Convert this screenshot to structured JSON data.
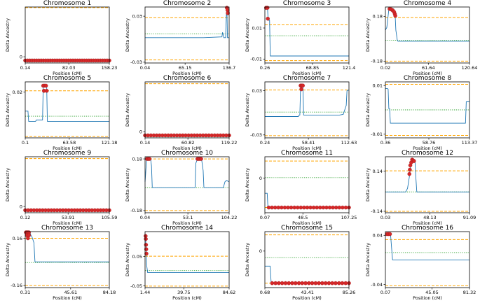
{
  "figure": {
    "xlabel": "Position (cM)",
    "ylabel": "Delta Ancestry",
    "colors": {
      "line": "#1f77b4",
      "bound": "#ffa500",
      "mean": "#2ca02c",
      "marker": "#d62728",
      "marker_edge": "#8b1a1a"
    }
  },
  "chart_data": [
    {
      "type": "line",
      "title": "Chromosome 1",
      "xticks": [
        "0.14",
        "82.03",
        "158.23"
      ],
      "yticks": [
        "0"
      ],
      "xlim": [
        0.14,
        158.23
      ],
      "ylim": [
        -0.01,
        0.08
      ],
      "upper": 0.079,
      "lower": -0.006,
      "mean": null,
      "series": [],
      "markers": {
        "x0": 0.14,
        "x1": 158.23,
        "y": -0.006,
        "n": 38
      }
    },
    {
      "type": "line",
      "title": "Chromosome 2",
      "xticks": [
        "0.04",
        "65.15",
        "136.7"
      ],
      "yticks": [
        "0.03",
        "-0.03"
      ],
      "xlim": [
        0.04,
        136.7
      ],
      "ylim": [
        -0.031,
        0.042
      ],
      "upper": 0.028,
      "lower": -0.027,
      "mean": 0.007,
      "series": [
        [
          0.04,
          0.002
        ],
        [
          95,
          0.002
        ],
        [
          125,
          0.003
        ],
        [
          126,
          0.009
        ],
        [
          128,
          0.002
        ],
        [
          131,
          0.002
        ],
        [
          132,
          0.03
        ],
        [
          133,
          0.041
        ],
        [
          134,
          0.002
        ],
        [
          136.7,
          0.002
        ]
      ],
      "markers": [
        [
          133,
          0.041
        ],
        [
          134,
          0.038
        ],
        [
          134.5,
          0.034
        ]
      ]
    },
    {
      "type": "line",
      "title": "Chromosome 3",
      "xticks": [
        "0.26",
        "68.85",
        "121.4"
      ],
      "yticks": [
        "0.01",
        "-0.01"
      ],
      "xlim": [
        0.26,
        121.4
      ],
      "ylim": [
        -0.0125,
        0.0235
      ],
      "upper": 0.012,
      "lower": -0.011,
      "mean": 0.005,
      "series": [
        [
          0.26,
          0.023
        ],
        [
          4,
          0.023
        ],
        [
          5,
          0.015
        ],
        [
          7,
          0.015
        ],
        [
          8,
          -0.008
        ],
        [
          121.4,
          -0.008
        ]
      ],
      "markers": [
        [
          2,
          0.023
        ],
        [
          4,
          0.023
        ],
        [
          4.5,
          0.016
        ]
      ]
    },
    {
      "type": "line",
      "title": "Chromosome 4",
      "xticks": [
        "0.02",
        "61.64",
        "120.64"
      ],
      "yticks": [
        "0.18",
        "-0.18"
      ],
      "xlim": [
        0.02,
        120.64
      ],
      "ylim": [
        -0.195,
        0.255
      ],
      "upper": 0.17,
      "lower": -0.18,
      "mean": -0.012,
      "series": [
        [
          0.02,
          0.07
        ],
        [
          2,
          0.09
        ],
        [
          5,
          0.24
        ],
        [
          12,
          0.24
        ],
        [
          14,
          0.19
        ],
        [
          15,
          0.07
        ],
        [
          17,
          -0.01
        ],
        [
          18,
          -0.02
        ],
        [
          120.64,
          -0.02
        ]
      ],
      "markers": [
        [
          6,
          0.24
        ],
        [
          8,
          0.237
        ],
        [
          9.5,
          0.232
        ],
        [
          11,
          0.225
        ],
        [
          12.5,
          0.215
        ],
        [
          13.5,
          0.2
        ],
        [
          14.2,
          0.185
        ]
      ]
    },
    {
      "type": "line",
      "title": "Chromosome 5",
      "xticks": [
        "0.1",
        "63.58",
        "121.18"
      ],
      "yticks": [
        "0.02"
      ],
      "xlim": [
        0.1,
        121.18
      ],
      "ylim": [
        -0.016,
        0.028
      ],
      "upper": 0.021,
      "lower": -0.015,
      "mean": 0.001,
      "series": [
        [
          0.1,
          0.005
        ],
        [
          4,
          0.005
        ],
        [
          5,
          -0.003
        ],
        [
          15,
          -0.003
        ],
        [
          16,
          -0.002
        ],
        [
          25,
          -0.002
        ],
        [
          26,
          0.025
        ],
        [
          31,
          0.025
        ],
        [
          32,
          -0.003
        ],
        [
          121.18,
          -0.003
        ]
      ],
      "markers": [
        [
          26,
          0.025
        ],
        [
          28,
          0.025
        ],
        [
          30,
          0.025
        ],
        [
          27,
          0.021
        ],
        [
          31,
          0.021
        ]
      ]
    },
    {
      "type": "line",
      "title": "Chromosome 6",
      "xticks": [
        "0.14",
        "60.82",
        "119.22"
      ],
      "yticks": [
        "0"
      ],
      "xlim": [
        0.14,
        119.22
      ],
      "ylim": [
        -0.01,
        0.08
      ],
      "upper": 0.077,
      "lower": -0.006,
      "mean": null,
      "series": [],
      "markers": {
        "x0": 0.14,
        "x1": 119.22,
        "y": -0.006,
        "n": 30
      }
    },
    {
      "type": "line",
      "title": "Chromosome 7",
      "xticks": [
        "0.24",
        "58.41",
        "112.63"
      ],
      "yticks": [
        "0.03",
        "-0.03"
      ],
      "xlim": [
        0.24,
        112.63
      ],
      "ylim": [
        -0.034,
        0.042
      ],
      "upper": 0.031,
      "lower": -0.031,
      "mean": 0.001,
      "series": [
        [
          0.24,
          -0.005
        ],
        [
          45,
          -0.005
        ],
        [
          46,
          -0.003
        ],
        [
          47,
          -0.003
        ],
        [
          48,
          0.037
        ],
        [
          51,
          0.037
        ],
        [
          52,
          -0.003
        ],
        [
          100,
          -0.003
        ],
        [
          105,
          -0.002
        ],
        [
          109,
          0.01
        ],
        [
          110,
          0.03
        ],
        [
          112.63,
          0.031
        ]
      ],
      "markers": [
        [
          48,
          0.037
        ],
        [
          49.5,
          0.037
        ],
        [
          51,
          0.037
        ],
        [
          49,
          0.032
        ]
      ]
    },
    {
      "type": "line",
      "title": "Chromosome 8",
      "xticks": [
        "0.36",
        "58.76",
        "113.37"
      ],
      "yticks": [
        "0.01",
        "-0.01"
      ],
      "xlim": [
        0.36,
        113.37
      ],
      "ylim": [
        -0.0115,
        0.0115
      ],
      "upper": 0.0105,
      "lower": -0.0105,
      "mean": 0.0,
      "series": [
        [
          0.36,
          0.0088
        ],
        [
          3,
          0.0088
        ],
        [
          4,
          0.0085
        ],
        [
          5,
          0.0005
        ],
        [
          6,
          0.0005
        ],
        [
          7,
          -0.0055
        ],
        [
          108,
          -0.0055
        ],
        [
          109,
          0.0033
        ],
        [
          113.37,
          0.0033
        ]
      ],
      "markers": []
    },
    {
      "type": "line",
      "title": "Chromosome 9",
      "xticks": [
        "0.12",
        "53.91",
        "105.59"
      ],
      "yticks": [
        "0"
      ],
      "xlim": [
        0.12,
        105.59
      ],
      "ylim": [
        -0.01,
        0.08
      ],
      "upper": 0.077,
      "lower": -0.006,
      "mean": null,
      "series": [],
      "markers": {
        "x0": 0.12,
        "x1": 105.59,
        "y": -0.006,
        "n": 30
      }
    },
    {
      "type": "line",
      "title": "Chromosome 10",
      "xticks": [
        "0.04",
        "53.1",
        "104.22"
      ],
      "yticks": [
        "0.18",
        "-0.18"
      ],
      "xlim": [
        0.04,
        104.22
      ],
      "ylim": [
        -0.195,
        0.195
      ],
      "upper": 0.18,
      "lower": -0.18,
      "mean": -0.02,
      "series": [
        [
          0.04,
          0.02
        ],
        [
          2,
          0.18
        ],
        [
          7,
          0.18
        ],
        [
          8,
          0.13
        ],
        [
          9,
          -0.02
        ],
        [
          62,
          -0.02
        ],
        [
          63,
          0.15
        ],
        [
          65,
          0.18
        ],
        [
          70,
          0.18
        ],
        [
          72,
          0.1
        ],
        [
          73,
          -0.02
        ],
        [
          97,
          -0.02
        ],
        [
          99,
          0.02
        ],
        [
          101,
          0.03
        ],
        [
          104.22,
          0.02
        ]
      ],
      "markers": [
        [
          2.5,
          0.18
        ],
        [
          4,
          0.18
        ],
        [
          5.5,
          0.18
        ],
        [
          65,
          0.18
        ],
        [
          66.5,
          0.18
        ],
        [
          68,
          0.18
        ],
        [
          69.5,
          0.18
        ]
      ]
    },
    {
      "type": "line",
      "title": "Chromosome 11",
      "xticks": [
        "0.07",
        "48.5",
        "107.25"
      ],
      "yticks": [
        "0"
      ],
      "xlim": [
        0.07,
        107.25
      ],
      "ylim": [
        -0.073,
        0.045
      ],
      "upper": 0.036,
      "lower": -0.062,
      "mean": 0.001,
      "series": [
        [
          0.07,
          -0.032
        ],
        [
          3,
          -0.032
        ],
        [
          4,
          -0.062
        ],
        [
          107.25,
          -0.062
        ]
      ],
      "markers": {
        "x0": 5,
        "x1": 107.25,
        "y": -0.062,
        "n": 26
      }
    },
    {
      "type": "line",
      "title": "Chromosome 12",
      "xticks": [
        "0.03",
        "48.13",
        "91.09"
      ],
      "yticks": [
        "0.14",
        "-0.14"
      ],
      "xlim": [
        0.03,
        91.09
      ],
      "ylim": [
        -0.15,
        0.24
      ],
      "upper": 0.142,
      "lower": -0.14,
      "mean": -0.005,
      "series": [
        [
          0.03,
          -0.005
        ],
        [
          22,
          -0.005
        ],
        [
          24,
          0.02
        ],
        [
          26,
          0.1
        ],
        [
          28,
          0.22
        ],
        [
          32,
          0.22
        ],
        [
          33,
          0.1
        ],
        [
          34,
          -0.005
        ],
        [
          91.09,
          -0.005
        ]
      ],
      "markers": [
        [
          26,
          0.12
        ],
        [
          26.5,
          0.15
        ],
        [
          27,
          0.18
        ],
        [
          28,
          0.2
        ],
        [
          29,
          0.22
        ],
        [
          30,
          0.215
        ],
        [
          31,
          0.21
        ]
      ]
    },
    {
      "type": "line",
      "title": "Chromosome 13",
      "xticks": [
        "0.31",
        "45.61",
        "84.18"
      ],
      "yticks": [
        "0.16",
        "-0.16"
      ],
      "xlim": [
        0.31,
        84.18
      ],
      "ylim": [
        -0.175,
        0.205
      ],
      "upper": 0.16,
      "lower": -0.16,
      "mean": -0.005,
      "series": [
        [
          0.31,
          0.2
        ],
        [
          5,
          0.2
        ],
        [
          6,
          0.18
        ],
        [
          7,
          0.17
        ],
        [
          9,
          0.13
        ],
        [
          10,
          0.0
        ],
        [
          84.18,
          0.0
        ]
      ],
      "markers": [
        [
          1,
          0.2
        ],
        [
          2,
          0.2
        ],
        [
          3,
          0.2
        ],
        [
          4,
          0.2
        ],
        [
          2,
          0.18
        ],
        [
          4,
          0.18
        ],
        [
          3,
          0.16
        ]
      ]
    },
    {
      "type": "line",
      "title": "Chromosome 14",
      "xticks": [
        "1.44",
        "39.75",
        "84.62"
      ],
      "yticks": [
        "0.05",
        "-0.05"
      ],
      "xlim": [
        1.44,
        84.62
      ],
      "ylim": [
        -0.056,
        0.135
      ],
      "upper": 0.051,
      "lower": -0.051,
      "mean": 0.002,
      "series": [
        [
          1.44,
          0.12
        ],
        [
          2,
          0.12
        ],
        [
          3,
          0.02
        ],
        [
          4,
          -0.005
        ],
        [
          84.62,
          -0.005
        ]
      ],
      "markers": [
        [
          2,
          0.12
        ],
        [
          2.2,
          0.11
        ],
        [
          2.4,
          0.09
        ],
        [
          2.6,
          0.075
        ],
        [
          2.8,
          0.06
        ]
      ]
    },
    {
      "type": "line",
      "title": "Chromosome 15",
      "xticks": [
        "0.68",
        "43.41",
        "85.26"
      ],
      "yticks": [
        "0"
      ],
      "xlim": [
        0.68,
        85.26
      ],
      "ylim": [
        -0.09,
        0.048
      ],
      "upper": 0.04,
      "lower": -0.079,
      "mean": -0.016,
      "series": [
        [
          0.68,
          -0.037
        ],
        [
          6,
          -0.037
        ],
        [
          7,
          -0.079
        ],
        [
          85.26,
          -0.079
        ]
      ],
      "markers": {
        "x0": 8,
        "x1": 85.26,
        "y": -0.079,
        "n": 24
      }
    },
    {
      "type": "line",
      "title": "Chromosome 16",
      "xticks": [
        "0.07",
        "45.05",
        "81.32"
      ],
      "yticks": [
        "0.04",
        "-0.04"
      ],
      "xlim": [
        0.07,
        81.32
      ],
      "ylim": [
        -0.045,
        0.046
      ],
      "upper": 0.033,
      "lower": -0.042,
      "mean": 0.012,
      "series": [
        [
          0.07,
          0.042
        ],
        [
          5,
          0.042
        ],
        [
          6,
          0.02
        ],
        [
          7,
          0.0
        ],
        [
          81.32,
          0.0
        ]
      ],
      "markers": [
        [
          1.5,
          0.042
        ],
        [
          3,
          0.042
        ],
        [
          4.5,
          0.042
        ]
      ]
    }
  ]
}
